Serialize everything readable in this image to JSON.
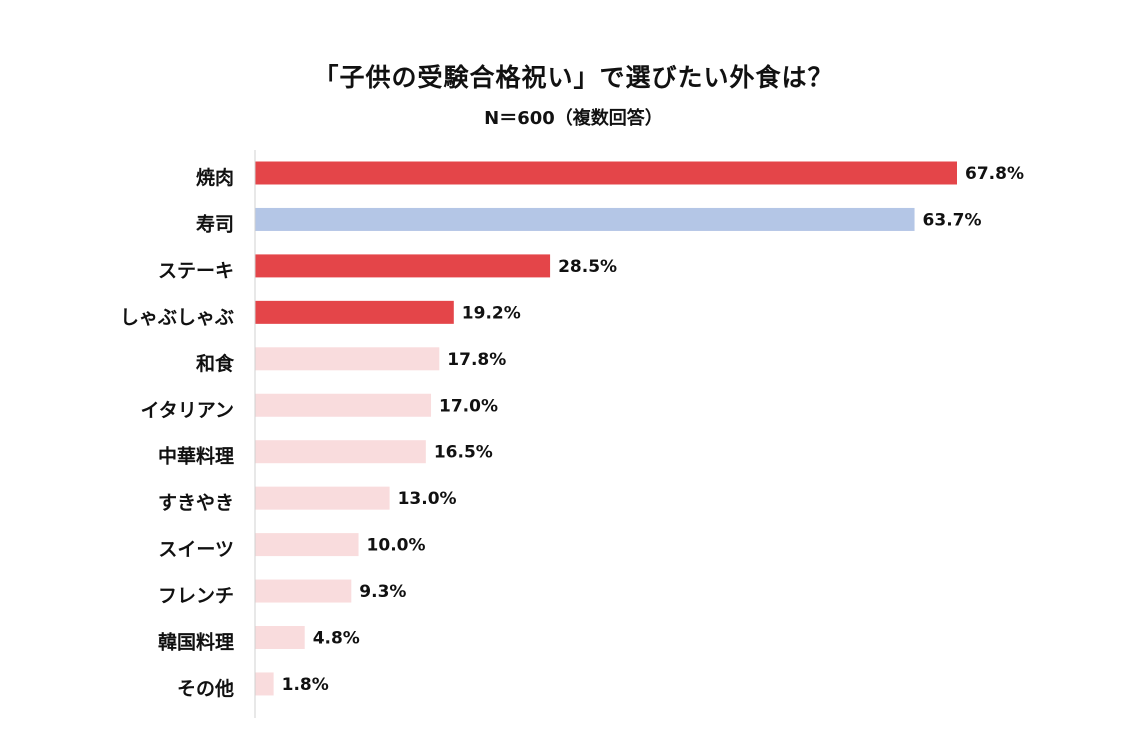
{
  "chart_data": {
    "type": "bar",
    "orientation": "horizontal",
    "title": "「子供の受験合格祝い」で選びたい外食は？",
    "subtitle": "N＝600（複数回答）",
    "xlabel": "",
    "ylabel": "",
    "xlim": [
      0,
      70
    ],
    "grid": false,
    "legend": "none",
    "value_suffix": "%",
    "categories": [
      "焼肉",
      "寿司",
      "ステーキ",
      "しゃぶしゃぶ",
      "和食",
      "イタリアン",
      "中華料理",
      "すきやき",
      "スイーツ",
      "フレンチ",
      "韓国料理",
      "その他"
    ],
    "values": [
      67.8,
      63.7,
      28.5,
      19.2,
      17.8,
      17.0,
      16.5,
      13.0,
      10.0,
      9.3,
      4.8,
      1.8
    ],
    "bar_colors": [
      "#e44549",
      "#b4c6e6",
      "#e44549",
      "#e44549",
      "#f9dcdd",
      "#f9dcdd",
      "#f9dcdd",
      "#f9dcdd",
      "#f9dcdd",
      "#f9dcdd",
      "#f9dcdd",
      "#f9dcdd"
    ],
    "axis_color": "#d0d0d0"
  }
}
